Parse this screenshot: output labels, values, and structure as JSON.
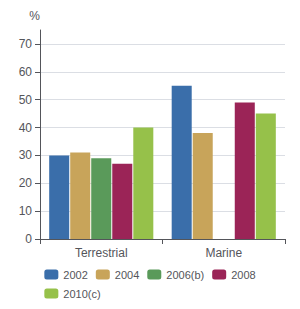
{
  "chart_data": {
    "type": "bar",
    "ylabel": "%",
    "categories": [
      "Terrestrial",
      "Marine"
    ],
    "series": [
      {
        "name": "2002",
        "color": "#3a6eaa",
        "values": [
          30,
          55
        ]
      },
      {
        "name": "2004",
        "color": "#c8a45a",
        "values": [
          31,
          38
        ]
      },
      {
        "name": "2006(b)",
        "color": "#5a9a5a",
        "values": [
          29,
          null
        ]
      },
      {
        "name": "2008",
        "color": "#9b2457",
        "values": [
          27,
          49
        ]
      },
      {
        "name": "2010(c)",
        "color": "#96c14a",
        "values": [
          40,
          45
        ]
      }
    ],
    "ylim": [
      0,
      75
    ],
    "yticks": [
      0,
      10,
      20,
      30,
      40,
      50,
      60,
      70
    ],
    "grid": true,
    "legend": "bottom"
  }
}
